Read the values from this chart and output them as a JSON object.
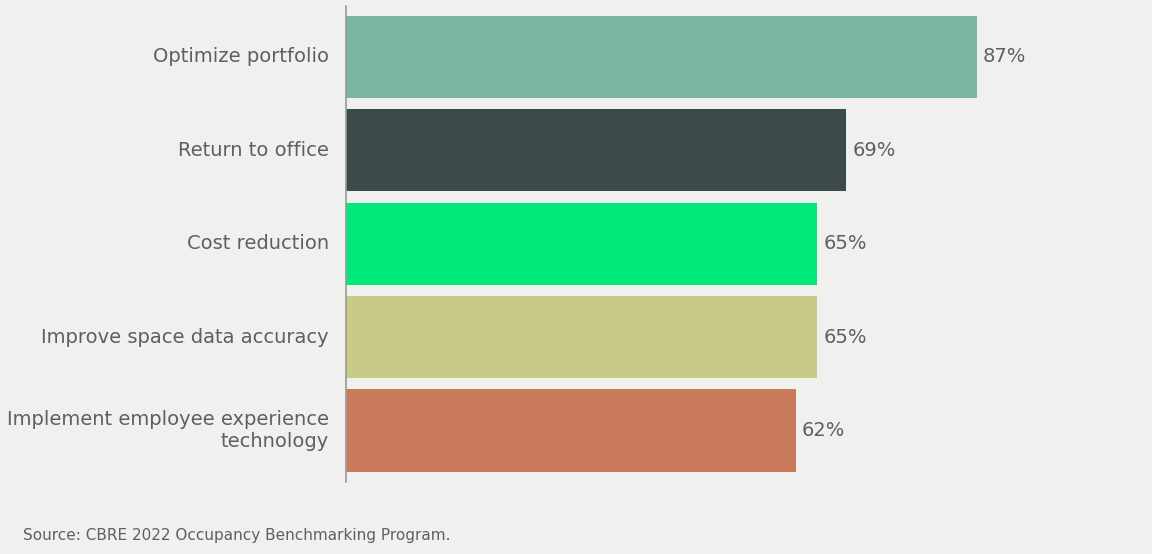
{
  "categories": [
    "Implement employee experience\ntechnology",
    "Improve space data accuracy",
    "Cost reduction",
    "Return to office",
    "Optimize portfolio"
  ],
  "values": [
    62,
    65,
    65,
    69,
    87
  ],
  "bar_colors": [
    "#c97a5a",
    "#c9c98a",
    "#00e87a",
    "#3d4a4a",
    "#7ab5a0"
  ],
  "label_texts": [
    "62%",
    "65%",
    "65%",
    "69%",
    "87%"
  ],
  "background_color": "#f0f0ee",
  "text_color": "#5a6068",
  "source_text": "Source: CBRE 2022 Occupancy Benchmarking Program.",
  "xlim": [
    0,
    100
  ],
  "bar_height": 0.88,
  "label_fontsize": 14,
  "ytick_fontsize": 14,
  "source_fontsize": 11
}
